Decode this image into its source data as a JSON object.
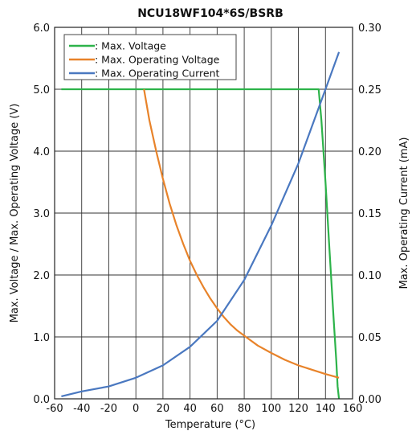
{
  "chart_data": {
    "type": "line",
    "title": "NCU18WF104*6S/BSRB",
    "xlabel": "Temperature (°C)",
    "ylabel": "Max. Voltage / Max. Operating Voltage (V)",
    "y2label": "Max. Operating Current (mA)",
    "xlim": [
      -60,
      160
    ],
    "ylim": [
      0,
      6
    ],
    "y2lim": [
      0,
      0.3
    ],
    "x_ticks": [
      "-60",
      "-40",
      "-20",
      "0",
      "20",
      "40",
      "60",
      "80",
      "100",
      "120",
      "140",
      "160"
    ],
    "y_ticks": [
      "0.0",
      "1.0",
      "2.0",
      "3.0",
      "4.0",
      "5.0",
      "6.0"
    ],
    "y2_ticks": [
      "0.00",
      "0.05",
      "0.10",
      "0.15",
      "0.20",
      "0.25",
      "0.30"
    ],
    "grid": true,
    "legend_position": "top-left",
    "series": [
      {
        "name": ": Max. Voltage",
        "axis": "left",
        "color": "#2db34a",
        "x": [
          -55,
          -20,
          20,
          60,
          100,
          135,
          137,
          140,
          143,
          146,
          148,
          149,
          150
        ],
        "y": [
          5.0,
          5.0,
          5.0,
          5.0,
          5.0,
          5.0,
          4.5,
          3.5,
          2.4,
          1.3,
          0.6,
          0.2,
          0.0
        ]
      },
      {
        "name": ": Max. Operating Voltage",
        "axis": "left",
        "color": "#e8832a",
        "x": [
          6,
          10,
          15,
          20,
          25,
          30,
          35,
          40,
          45,
          50,
          55,
          60,
          65,
          70,
          75,
          80,
          90,
          100,
          110,
          120,
          130,
          140,
          150
        ],
        "y": [
          5.0,
          4.5,
          4.0,
          3.55,
          3.15,
          2.8,
          2.5,
          2.23,
          2.0,
          1.8,
          1.62,
          1.46,
          1.32,
          1.2,
          1.1,
          1.02,
          0.86,
          0.74,
          0.63,
          0.54,
          0.47,
          0.4,
          0.34
        ]
      },
      {
        "name": ": Max. Operating Current",
        "axis": "right",
        "color": "#4a78c0",
        "x": [
          -55,
          -40,
          -20,
          0,
          20,
          40,
          60,
          80,
          100,
          120,
          140,
          150
        ],
        "y": [
          0.002,
          0.006,
          0.01,
          0.017,
          0.027,
          0.042,
          0.063,
          0.096,
          0.14,
          0.19,
          0.25,
          0.28
        ]
      }
    ]
  }
}
